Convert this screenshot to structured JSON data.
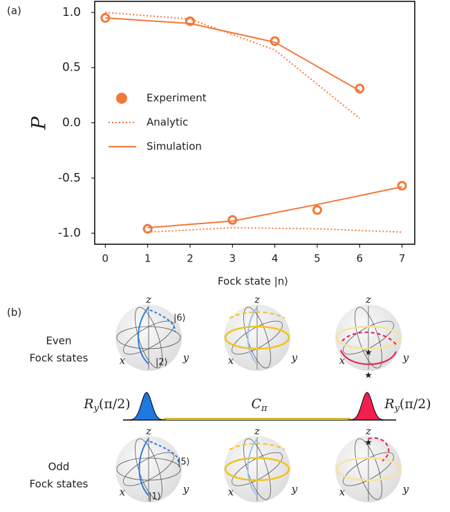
{
  "chart_data": {
    "type": "line",
    "panel_label": "(a)",
    "ylabel": "P",
    "xlabel": "Fock state  |n⟩",
    "x": [
      [
        0,
        2,
        4,
        6
      ],
      [
        1,
        3,
        5,
        7
      ]
    ],
    "series": [
      {
        "name": "Experiment",
        "color": "#f4773a",
        "style": "marker",
        "values": [
          [
            0.95,
            0.92,
            0.74,
            0.31
          ],
          [
            -0.96,
            -0.88,
            -0.79,
            -0.57
          ]
        ]
      },
      {
        "name": "Analytic",
        "color": "#f4773a",
        "style": "dotted",
        "values": [
          [
            1.0,
            0.94,
            0.66,
            0.04
          ],
          [
            -0.99,
            -0.95,
            -0.96,
            -0.99
          ]
        ]
      },
      {
        "name": "Simulation",
        "color": "#f4773a",
        "style": "solid",
        "values": [
          [
            0.95,
            0.9,
            0.73,
            0.29
          ],
          [
            -0.95,
            -0.89,
            -0.74,
            -0.58
          ]
        ]
      }
    ],
    "xlim": [
      -0.25,
      7.3
    ],
    "ylim": [
      -1.1,
      1.1
    ],
    "xticks": [
      0,
      1,
      2,
      3,
      4,
      5,
      6,
      7
    ],
    "yticks": [
      {
        "value": 1.0,
        "label": "1.0"
      },
      {
        "value": 0.5,
        "label": "0.5"
      },
      {
        "value": 0.0,
        "label": "0.0"
      },
      {
        "value": -0.5,
        "label": "-0.5"
      },
      {
        "value": -1.0,
        "label": "-1.0"
      }
    ],
    "legend": "middle-left"
  },
  "diagram": {
    "panel_label": "(b)",
    "rows": [
      {
        "title": [
          "Even",
          "Fock states"
        ]
      },
      {
        "title": [
          "Odd",
          "Fock states"
        ]
      }
    ],
    "spheres": [
      {
        "axes": {
          "z": "z",
          "x": "x",
          "y": "y"
        },
        "states": [
          "|6⟩",
          "|2⟩"
        ]
      },
      {
        "axes": {
          "z": "z",
          "x": "x",
          "y": "y"
        }
      },
      {
        "axes": {
          "z": "z",
          "x": "x",
          "y": "y"
        }
      },
      {
        "axes": {
          "z": "z",
          "x": "x",
          "y": "y"
        },
        "states": [
          "|5⟩",
          "|1⟩"
        ]
      },
      {
        "axes": {
          "z": "z",
          "x": "x",
          "y": "y"
        }
      },
      {
        "axes": {
          "z": "z",
          "x": "x",
          "y": "y"
        }
      }
    ],
    "pulses": [
      {
        "base": "R",
        "sub": "y",
        "arg": "(π/2)"
      },
      {
        "base": "C",
        "sub": "π"
      },
      {
        "base": "R",
        "sub": "y",
        "arg": "(π/2)"
      }
    ]
  }
}
